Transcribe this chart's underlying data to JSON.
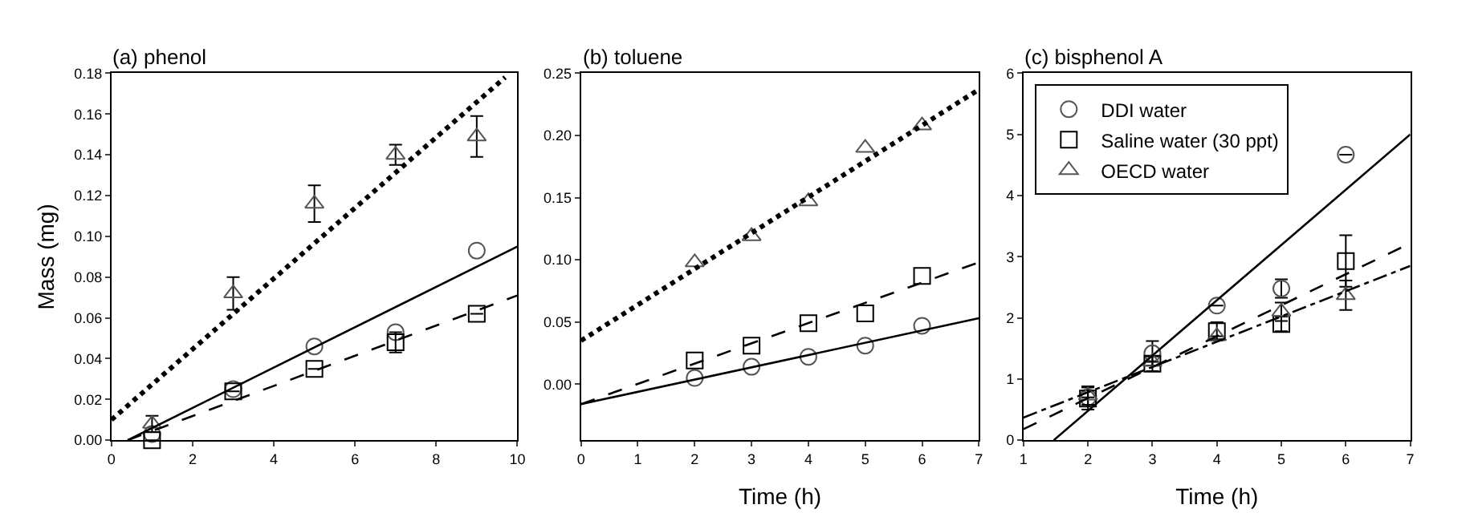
{
  "chart_data": [
    {
      "type": "scatter",
      "title": "(a) phenol",
      "ylabel": "Mass (mg)",
      "xlim": [
        0,
        10
      ],
      "xticks": [
        0,
        2,
        4,
        6,
        8,
        10
      ],
      "ylim": [
        0,
        0.18
      ],
      "yticks": [
        {
          "value": 0,
          "label": "0.00"
        },
        0.02,
        0.04,
        0.06,
        0.08,
        {
          "value": 0.1,
          "label": "0.10"
        },
        0.12,
        0.14,
        0.16,
        0.18
      ],
      "legend": false,
      "series": [
        {
          "type": "scatter",
          "marker": "circle",
          "color": "#555555",
          "x": [
            1,
            3,
            5,
            7,
            9
          ],
          "values": [
            0.003,
            0.025,
            0.046,
            0.053,
            0.093
          ]
        },
        {
          "type": "scatter",
          "marker": "square",
          "color": "#000000",
          "x": [
            1,
            3,
            5,
            7,
            9
          ],
          "values": [
            0.0,
            0.024,
            0.035,
            0.048,
            0.062
          ],
          "errors": [
            null,
            null,
            null,
            0.005,
            null
          ]
        },
        {
          "type": "scatter",
          "marker": "triangle",
          "color": "#555555",
          "x": [
            1,
            3,
            5,
            7,
            9
          ],
          "values": [
            0.008,
            0.072,
            0.116,
            0.14,
            0.149
          ],
          "errors": [
            0.004,
            0.008,
            0.009,
            0.005,
            0.01
          ]
        },
        {
          "type": "line",
          "line_style": "solid",
          "color": "#000000",
          "x": [
            0.4,
            10
          ],
          "values": [
            0,
            0.095
          ]
        },
        {
          "type": "line",
          "line_style": "dashed",
          "color": "#000000",
          "x": [
            0.4,
            10
          ],
          "values": [
            0,
            0.071
          ]
        },
        {
          "type": "line",
          "line_style": "dotted",
          "color": "#000000",
          "x": [
            0,
            9.7
          ],
          "values": [
            0.01,
            0.178
          ]
        }
      ]
    },
    {
      "type": "scatter",
      "title": "(b) toluene",
      "xlabel": "Time (h)",
      "xlim": [
        0,
        7
      ],
      "xticks": [
        0,
        1,
        2,
        3,
        4,
        5,
        6,
        7
      ],
      "ylim": [
        -0.045,
        0.25
      ],
      "yticks": [
        {
          "value": 0,
          "label": "0.00"
        },
        0.05,
        {
          "value": 0.1,
          "label": "0.10"
        },
        0.15,
        {
          "value": 0.2,
          "label": "0.20"
        },
        0.25
      ],
      "legend": false,
      "series": [
        {
          "type": "scatter",
          "marker": "circle",
          "color": "#555555",
          "x": [
            2,
            3,
            4,
            5,
            6
          ],
          "values": [
            0.005,
            0.014,
            0.022,
            0.031,
            0.047
          ]
        },
        {
          "type": "scatter",
          "marker": "square",
          "color": "#000000",
          "x": [
            2,
            3,
            4,
            5,
            6
          ],
          "values": [
            0.019,
            0.031,
            0.049,
            0.057,
            0.087
          ]
        },
        {
          "type": "scatter",
          "marker": "triangle",
          "color": "#555555",
          "x": [
            2,
            3,
            4,
            5,
            6
          ],
          "values": [
            0.098,
            0.119,
            0.147,
            0.19,
            0.208
          ]
        },
        {
          "type": "line",
          "line_style": "solid",
          "color": "#000000",
          "x": [
            0,
            7
          ],
          "values": [
            -0.016,
            0.053
          ]
        },
        {
          "type": "line",
          "line_style": "dashed",
          "color": "#000000",
          "x": [
            0,
            7
          ],
          "values": [
            -0.016,
            0.098
          ]
        },
        {
          "type": "line",
          "line_style": "dotted",
          "color": "#000000",
          "x": [
            0,
            7
          ],
          "values": [
            0.035,
            0.237
          ]
        }
      ]
    },
    {
      "type": "scatter",
      "title": "(c) bisphenol A",
      "xlabel": "Time (h)",
      "xlim": [
        1,
        7
      ],
      "xticks": [
        1,
        2,
        3,
        4,
        5,
        6,
        7
      ],
      "ylim": [
        0,
        6
      ],
      "yticks": [
        0,
        1,
        2,
        3,
        4,
        5,
        6
      ],
      "legend": "top left",
      "series": [
        {
          "type": "scatter",
          "name": "DDI water",
          "marker": "circle",
          "color": "#555555",
          "x": [
            2,
            3,
            4,
            5,
            6
          ],
          "values": [
            0.7,
            1.42,
            2.2,
            2.48,
            4.67
          ],
          "errors": [
            null,
            0.2,
            null,
            0.15,
            null
          ]
        },
        {
          "type": "scatter",
          "name": "Saline water (30 ppt)",
          "marker": "square",
          "color": "#000000",
          "x": [
            2,
            3,
            4,
            5,
            6
          ],
          "values": [
            0.68,
            1.25,
            1.78,
            1.9,
            2.93
          ],
          "errors": [
            0.18,
            0.12,
            0.15,
            0.12,
            0.42
          ]
        },
        {
          "type": "scatter",
          "name": "OECD water",
          "marker": "triangle",
          "color": "#555555",
          "x": [
            2,
            3,
            4,
            5,
            6
          ],
          "values": [
            0.73,
            1.28,
            1.7,
            2.1,
            2.37
          ],
          "errors": [
            0.15,
            null,
            null,
            0.15,
            0.24
          ]
        },
        {
          "type": "line",
          "line_style": "solid",
          "color": "#000000",
          "x": [
            1.47,
            7
          ],
          "values": [
            0,
            5.0
          ]
        },
        {
          "type": "line",
          "line_style": "dashed",
          "color": "#000000",
          "x": [
            1,
            7
          ],
          "values": [
            0.18,
            3.22
          ]
        },
        {
          "type": "line",
          "line_style": "dashdot",
          "color": "#000000",
          "x": [
            1,
            7
          ],
          "values": [
            0.37,
            2.85
          ]
        }
      ]
    }
  ]
}
